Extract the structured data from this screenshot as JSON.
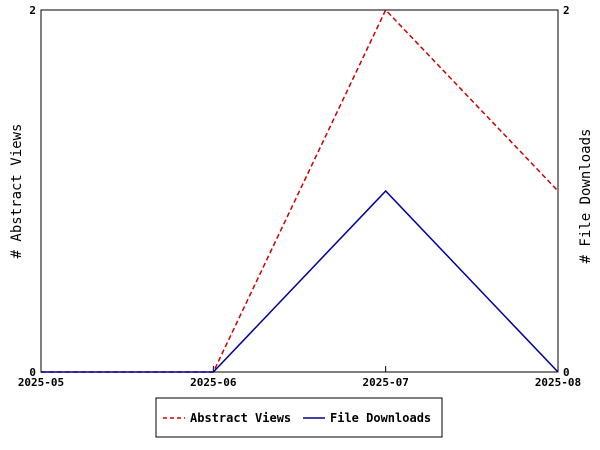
{
  "chart_data": {
    "type": "line",
    "x": [
      "2025-05",
      "2025-06",
      "2025-07",
      "2025-08"
    ],
    "series": [
      {
        "name": "Abstract Views",
        "values": [
          0,
          0,
          2,
          1
        ],
        "axis": "left",
        "color": "#cc0000",
        "dash": "dashed"
      },
      {
        "name": "File Downloads",
        "values": [
          0,
          0,
          1,
          0
        ],
        "axis": "right",
        "color": "#000099",
        "dash": "solid"
      }
    ],
    "ylabel": "# Abstract Views",
    "y2label": "# File Downloads",
    "ylim": [
      0,
      2
    ],
    "y2lim": [
      0,
      2
    ],
    "yticks": [
      "0",
      "2"
    ],
    "y2ticks": [
      "0",
      "2"
    ],
    "grid": false,
    "legend_position": "bottom-center"
  }
}
